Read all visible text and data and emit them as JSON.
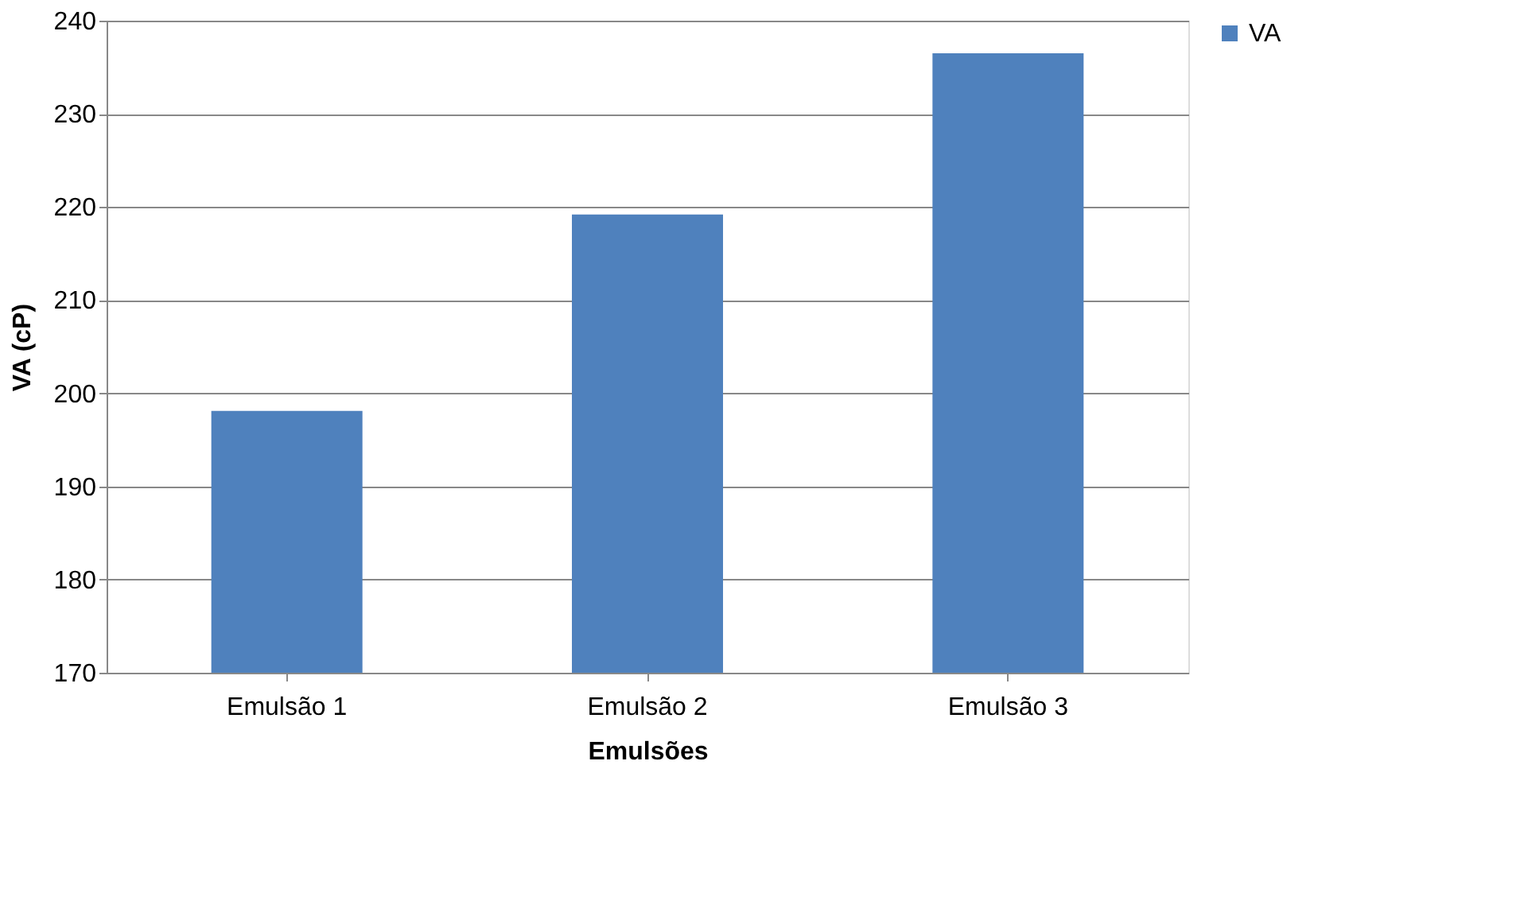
{
  "chart_data": {
    "type": "bar",
    "xlabel": "Emulsões",
    "ylabel": "VA (cP)",
    "categories": [
      "Emulsão 1",
      "Emulsão 2",
      "Emulsão 3"
    ],
    "series": [
      {
        "name": "VA",
        "color": "#4f81bd",
        "values": [
          198.1,
          219.2,
          236.5
        ]
      }
    ],
    "ylim": [
      170,
      240
    ],
    "yticks": [
      170,
      180,
      190,
      200,
      210,
      220,
      230,
      240
    ],
    "grid": "y",
    "legend": "right"
  }
}
